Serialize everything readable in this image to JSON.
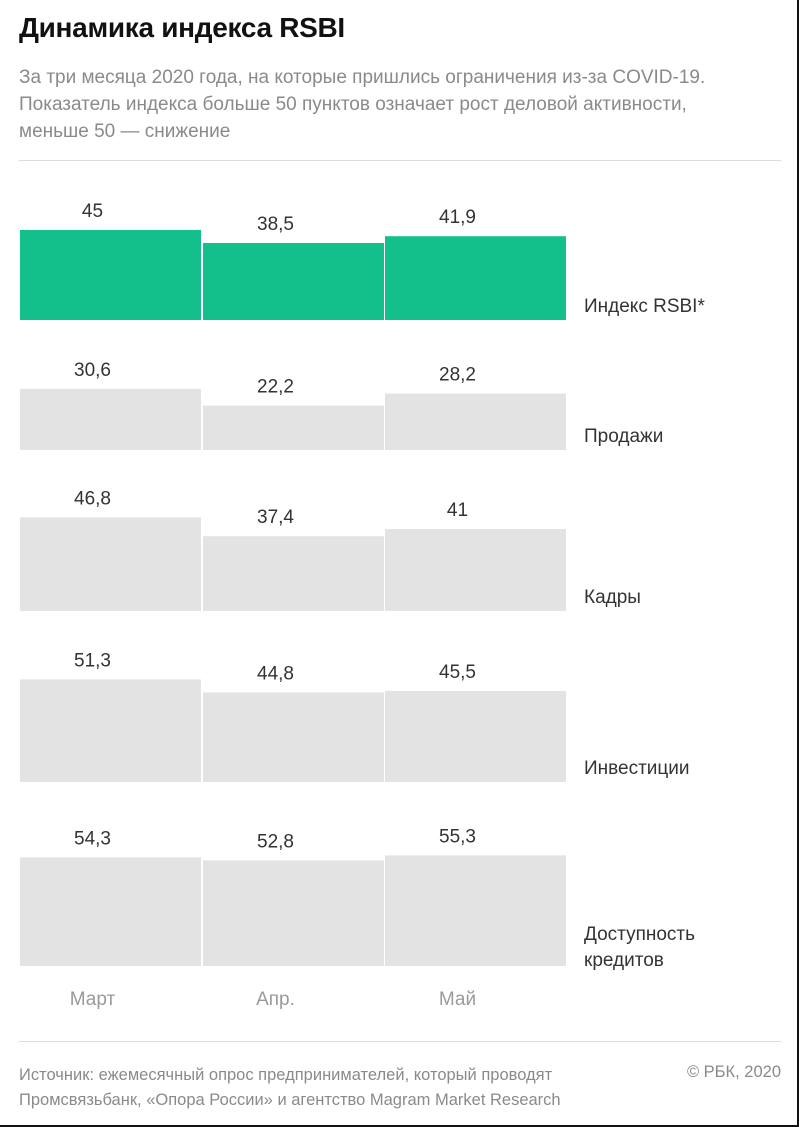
{
  "header": {
    "title": "Динамика индекса RSBI",
    "subtitle": "За три месяца 2020 года, на которые пришлись ограничения из-за COVID-19. Показатель индекса больше 50 пунктов означает рост деловой активности, меньше 50 — снижение"
  },
  "footer": {
    "source": "Источник: ежемесячный опрос предпринимателей, который проводят Промсвязьбанк, «Опора России» и агентство Magram Market Research",
    "copyright": "© РБК, 2020"
  },
  "chart_data": {
    "type": "bar",
    "categories": [
      "Март",
      "Апр.",
      "Май"
    ],
    "series": [
      {
        "name": "Индекс RSBI*",
        "values": [
          45,
          38.5,
          41.9
        ],
        "labels": [
          "45",
          "38,5",
          "41,9"
        ],
        "color": "#13bf8a"
      },
      {
        "name": "Продажи",
        "values": [
          30.6,
          22.2,
          28.2
        ],
        "labels": [
          "30,6",
          "22,2",
          "28,2"
        ],
        "color": "#e3e3e3"
      },
      {
        "name": "Кадры",
        "values": [
          46.8,
          37.4,
          41
        ],
        "labels": [
          "46,8",
          "37,4",
          "41"
        ],
        "color": "#e3e3e3"
      },
      {
        "name": "Инвестиции",
        "values": [
          51.3,
          44.8,
          45.5
        ],
        "labels": [
          "51,3",
          "44,8",
          "45,5"
        ],
        "color": "#e3e3e3"
      },
      {
        "name": "Доступность кредитов",
        "values": [
          54.3,
          52.8,
          55.3
        ],
        "labels": [
          "54,3",
          "52,8",
          "55,3"
        ],
        "color": "#e3e3e3"
      }
    ]
  }
}
